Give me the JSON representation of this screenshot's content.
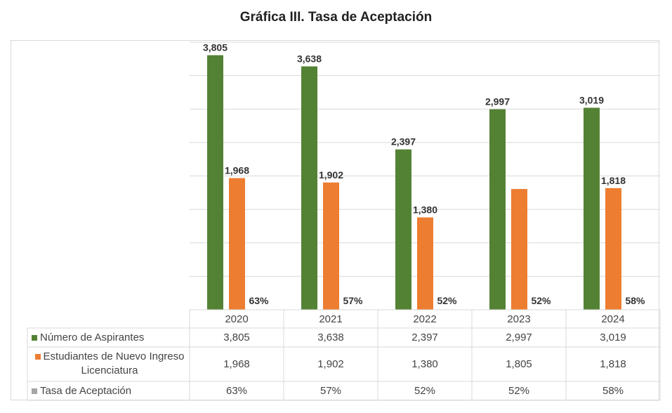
{
  "chart_data": {
    "type": "bar",
    "title": "Gráfica III. Tasa de Aceptación",
    "categories": [
      "2020",
      "2021",
      "2022",
      "2023",
      "2024"
    ],
    "ylim": [
      0,
      4000
    ],
    "grid": true,
    "legend": "data-table-below",
    "series": [
      {
        "name": "Número de Aspirantes",
        "color": "#548235",
        "values": [
          3805,
          3638,
          2397,
          2997,
          3019
        ],
        "labels": [
          "3,805",
          "3,638",
          "2,397",
          "2,997",
          "3,019"
        ],
        "shown_labels": [
          "3,805",
          "3,638",
          "2,397",
          "2,997",
          "3,019"
        ]
      },
      {
        "name": "Estudiantes de Nuevo Ingreso Licenciatura",
        "color": "#ed7d31",
        "values": [
          1968,
          1902,
          1380,
          1805,
          1818
        ],
        "labels": [
          "1,968",
          "1,902",
          "1,380",
          "1,805",
          "1,818"
        ],
        "shown_labels": [
          "1,968",
          "1,902",
          "1,380",
          "",
          "1,818"
        ]
      },
      {
        "name": "Tasa de Aceptación",
        "color": "#a5a5a5",
        "values": [
          0.63,
          0.57,
          0.52,
          0.52,
          0.58
        ],
        "labels": [
          "63%",
          "57%",
          "52%",
          "52%",
          "58%"
        ],
        "shown_labels": [
          "63%",
          "57%",
          "52%",
          "52%",
          "58%"
        ]
      }
    ]
  }
}
